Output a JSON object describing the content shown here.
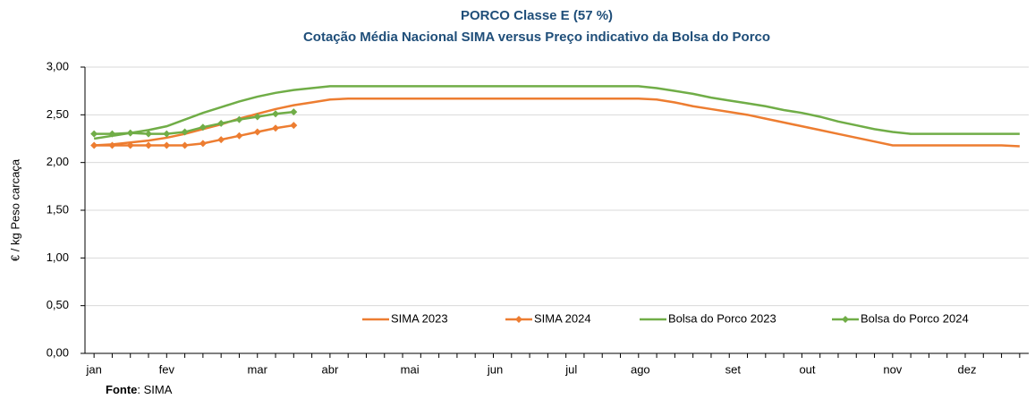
{
  "chart_data": {
    "type": "line",
    "title": "PORCO Classe E (57 %)",
    "subtitle": "Cotação Média Nacional SIMA versus Preço indicativo da Bolsa do Porco",
    "y_label": "€ / kg Peso carcaça",
    "source": {
      "label": "Fonte",
      "text": ": SIMA"
    },
    "x": [
      1,
      2,
      3,
      4,
      5,
      6,
      7,
      8,
      9,
      10,
      11,
      12,
      13,
      14,
      15,
      16,
      17,
      18,
      19,
      20,
      21,
      22,
      23,
      24,
      25,
      26,
      27,
      28,
      29,
      30,
      31,
      32,
      33,
      34,
      35,
      36,
      37,
      38,
      39,
      40,
      41,
      42,
      43,
      44,
      45,
      46,
      47,
      48,
      49,
      50,
      51,
      52
    ],
    "xlim": [
      0.5,
      52.5
    ],
    "xticks": [
      {
        "value": 1,
        "label": "jan"
      },
      {
        "value": 5,
        "label": "fev"
      },
      {
        "value": 10,
        "label": "mar"
      },
      {
        "value": 14,
        "label": "abr"
      },
      {
        "value": 18.4,
        "label": "mai"
      },
      {
        "value": 23.1,
        "label": "jun"
      },
      {
        "value": 27.3,
        "label": "jul"
      },
      {
        "value": 31.1,
        "label": "ago"
      },
      {
        "value": 36.2,
        "label": "set"
      },
      {
        "value": 40.3,
        "label": "out"
      },
      {
        "value": 45,
        "label": "nov"
      },
      {
        "value": 49.1,
        "label": "dez"
      }
    ],
    "ylim": [
      0,
      3
    ],
    "yticks": [
      {
        "value": 0,
        "label": "0,00"
      },
      {
        "value": 0.5,
        "label": "0,50"
      },
      {
        "value": 1,
        "label": "1,00"
      },
      {
        "value": 1.5,
        "label": "1,50"
      },
      {
        "value": 2,
        "label": "2,00"
      },
      {
        "value": 2.5,
        "label": "2,50"
      },
      {
        "value": 3,
        "label": "3,00"
      }
    ],
    "grid": true,
    "legend": "bottom",
    "series": [
      {
        "name": "SIMA 2023",
        "color": "#ed7d31",
        "marker": false,
        "values": [
          2.18,
          2.19,
          2.21,
          2.23,
          2.26,
          2.3,
          2.35,
          2.4,
          2.46,
          2.51,
          2.56,
          2.6,
          2.63,
          2.66,
          2.67,
          2.67,
          2.67,
          2.67,
          2.67,
          2.67,
          2.67,
          2.67,
          2.67,
          2.67,
          2.67,
          2.67,
          2.67,
          2.67,
          2.67,
          2.67,
          2.67,
          2.66,
          2.63,
          2.59,
          2.56,
          2.53,
          2.5,
          2.46,
          2.42,
          2.38,
          2.34,
          2.3,
          2.26,
          2.22,
          2.18,
          2.18,
          2.18,
          2.18,
          2.18,
          2.18,
          2.18,
          2.17
        ]
      },
      {
        "name": "SIMA 2024",
        "color": "#ed7d31",
        "marker": true,
        "values": [
          2.18,
          2.18,
          2.18,
          2.18,
          2.18,
          2.18,
          2.2,
          2.24,
          2.28,
          2.32,
          2.36,
          2.39,
          null,
          null,
          null,
          null,
          null,
          null,
          null,
          null,
          null,
          null,
          null,
          null,
          null,
          null,
          null,
          null,
          null,
          null,
          null,
          null,
          null,
          null,
          null,
          null,
          null,
          null,
          null,
          null,
          null,
          null,
          null,
          null,
          null,
          null,
          null,
          null,
          null,
          null,
          null,
          null
        ]
      },
      {
        "name": "Bolsa do Porco 2023",
        "color": "#70ad47",
        "marker": false,
        "values": [
          2.25,
          2.28,
          2.31,
          2.34,
          2.38,
          2.45,
          2.52,
          2.58,
          2.64,
          2.69,
          2.73,
          2.76,
          2.78,
          2.8,
          2.8,
          2.8,
          2.8,
          2.8,
          2.8,
          2.8,
          2.8,
          2.8,
          2.8,
          2.8,
          2.8,
          2.8,
          2.8,
          2.8,
          2.8,
          2.8,
          2.8,
          2.78,
          2.75,
          2.72,
          2.68,
          2.65,
          2.62,
          2.59,
          2.55,
          2.52,
          2.48,
          2.43,
          2.39,
          2.35,
          2.32,
          2.3,
          2.3,
          2.3,
          2.3,
          2.3,
          2.3,
          2.3
        ]
      },
      {
        "name": "Bolsa do Porco 2024",
        "color": "#70ad47",
        "marker": true,
        "values": [
          2.3,
          2.3,
          2.31,
          2.3,
          2.3,
          2.32,
          2.37,
          2.41,
          2.45,
          2.48,
          2.51,
          2.53,
          null,
          null,
          null,
          null,
          null,
          null,
          null,
          null,
          null,
          null,
          null,
          null,
          null,
          null,
          null,
          null,
          null,
          null,
          null,
          null,
          null,
          null,
          null,
          null,
          null,
          null,
          null,
          null,
          null,
          null,
          null,
          null,
          null,
          null,
          null,
          null,
          null,
          null,
          null,
          null
        ]
      }
    ]
  }
}
